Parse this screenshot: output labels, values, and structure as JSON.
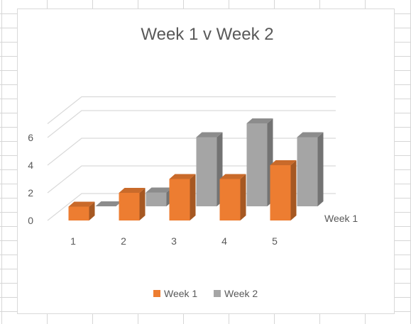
{
  "chart_data": {
    "type": "bar",
    "title": "Week 1 v Week 2",
    "categories": [
      "1",
      "2",
      "3",
      "4",
      "5"
    ],
    "series": [
      {
        "name": "Week 1",
        "values": [
          1,
          2,
          3,
          3,
          4
        ],
        "color": "#ED7D31"
      },
      {
        "name": "Week 2",
        "values": [
          0,
          1,
          5,
          6,
          5
        ],
        "color": "#A5A5A5"
      }
    ],
    "y_ticks": [
      "0",
      "2",
      "4",
      "6"
    ],
    "ylim": [
      0,
      7
    ],
    "depth_axis_labels": [
      "Week 1"
    ],
    "grid": true,
    "legend_position": "bottom",
    "style": "3d-column"
  }
}
